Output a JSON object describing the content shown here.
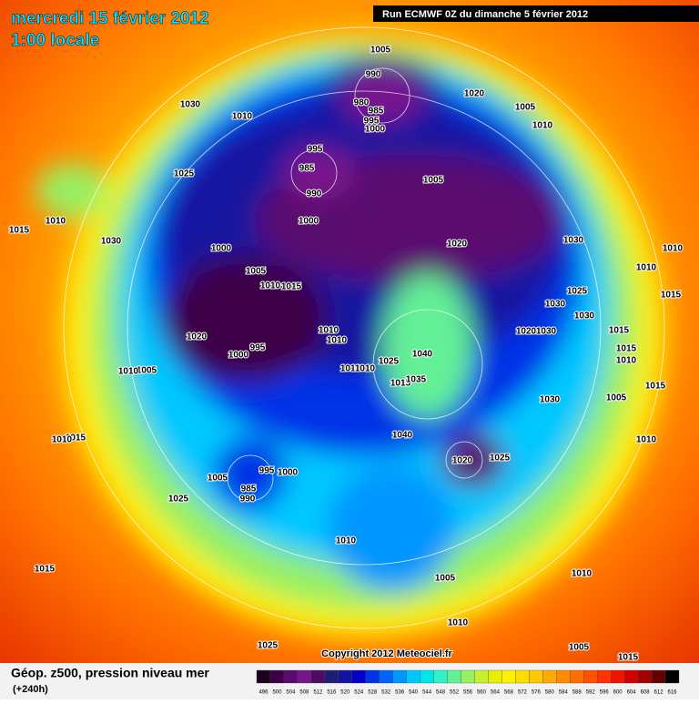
{
  "header": {
    "date": "mercredi 15 février 2012",
    "time": "1:00 locale",
    "run": "Run ECMWF 0Z du dimanche 5 février 2012"
  },
  "map": {
    "isobar_labels": [
      1005,
      990,
      980,
      985,
      995,
      1000,
      1020,
      1005,
      1010,
      1030,
      1010,
      995,
      985,
      990,
      1005,
      1025,
      1000,
      1010,
      1015,
      1030,
      1000,
      1020,
      1030,
      1010,
      1010,
      1005,
      1010,
      1015,
      1025,
      1015,
      1030,
      1030,
      1020,
      1010,
      1010,
      1020,
      1030,
      1015,
      1015,
      1010,
      1040,
      995,
      1000,
      1005,
      1010,
      1010,
      1010,
      1025,
      1015,
      1035,
      1015,
      1005,
      1030,
      1040,
      1015,
      1010,
      1010,
      1020,
      1025,
      995,
      1000,
      1005,
      985,
      990,
      1025,
      1010,
      1015,
      1005,
      1010,
      1010,
      1025,
      1005,
      1015
    ],
    "copyright": "Copyright 2012 Meteociel.fr"
  },
  "footer": {
    "field": "Géop. z500, pression niveau mer",
    "lead": "(+240h)"
  },
  "legend": {
    "values": [
      496,
      500,
      504,
      508,
      512,
      516,
      520,
      524,
      528,
      532,
      536,
      540,
      544,
      548,
      552,
      556,
      560,
      564,
      568,
      572,
      576,
      580,
      584,
      588,
      592,
      596,
      600,
      604,
      608,
      612,
      616
    ],
    "colors": [
      "#1e001e",
      "#3c0046",
      "#5a0a6e",
      "#78148c",
      "#500a64",
      "#1e1e78",
      "#1414a0",
      "#0000c8",
      "#0032e6",
      "#0064ff",
      "#0096ff",
      "#00c8ff",
      "#00e6e6",
      "#32f0c8",
      "#64f096",
      "#96f064",
      "#c8f032",
      "#e6f000",
      "#fff000",
      "#ffdc00",
      "#ffc800",
      "#ffaa00",
      "#ff8c00",
      "#ff6e00",
      "#ff5000",
      "#ff3200",
      "#f01400",
      "#d20000",
      "#a00000",
      "#640000",
      "#000000"
    ]
  }
}
